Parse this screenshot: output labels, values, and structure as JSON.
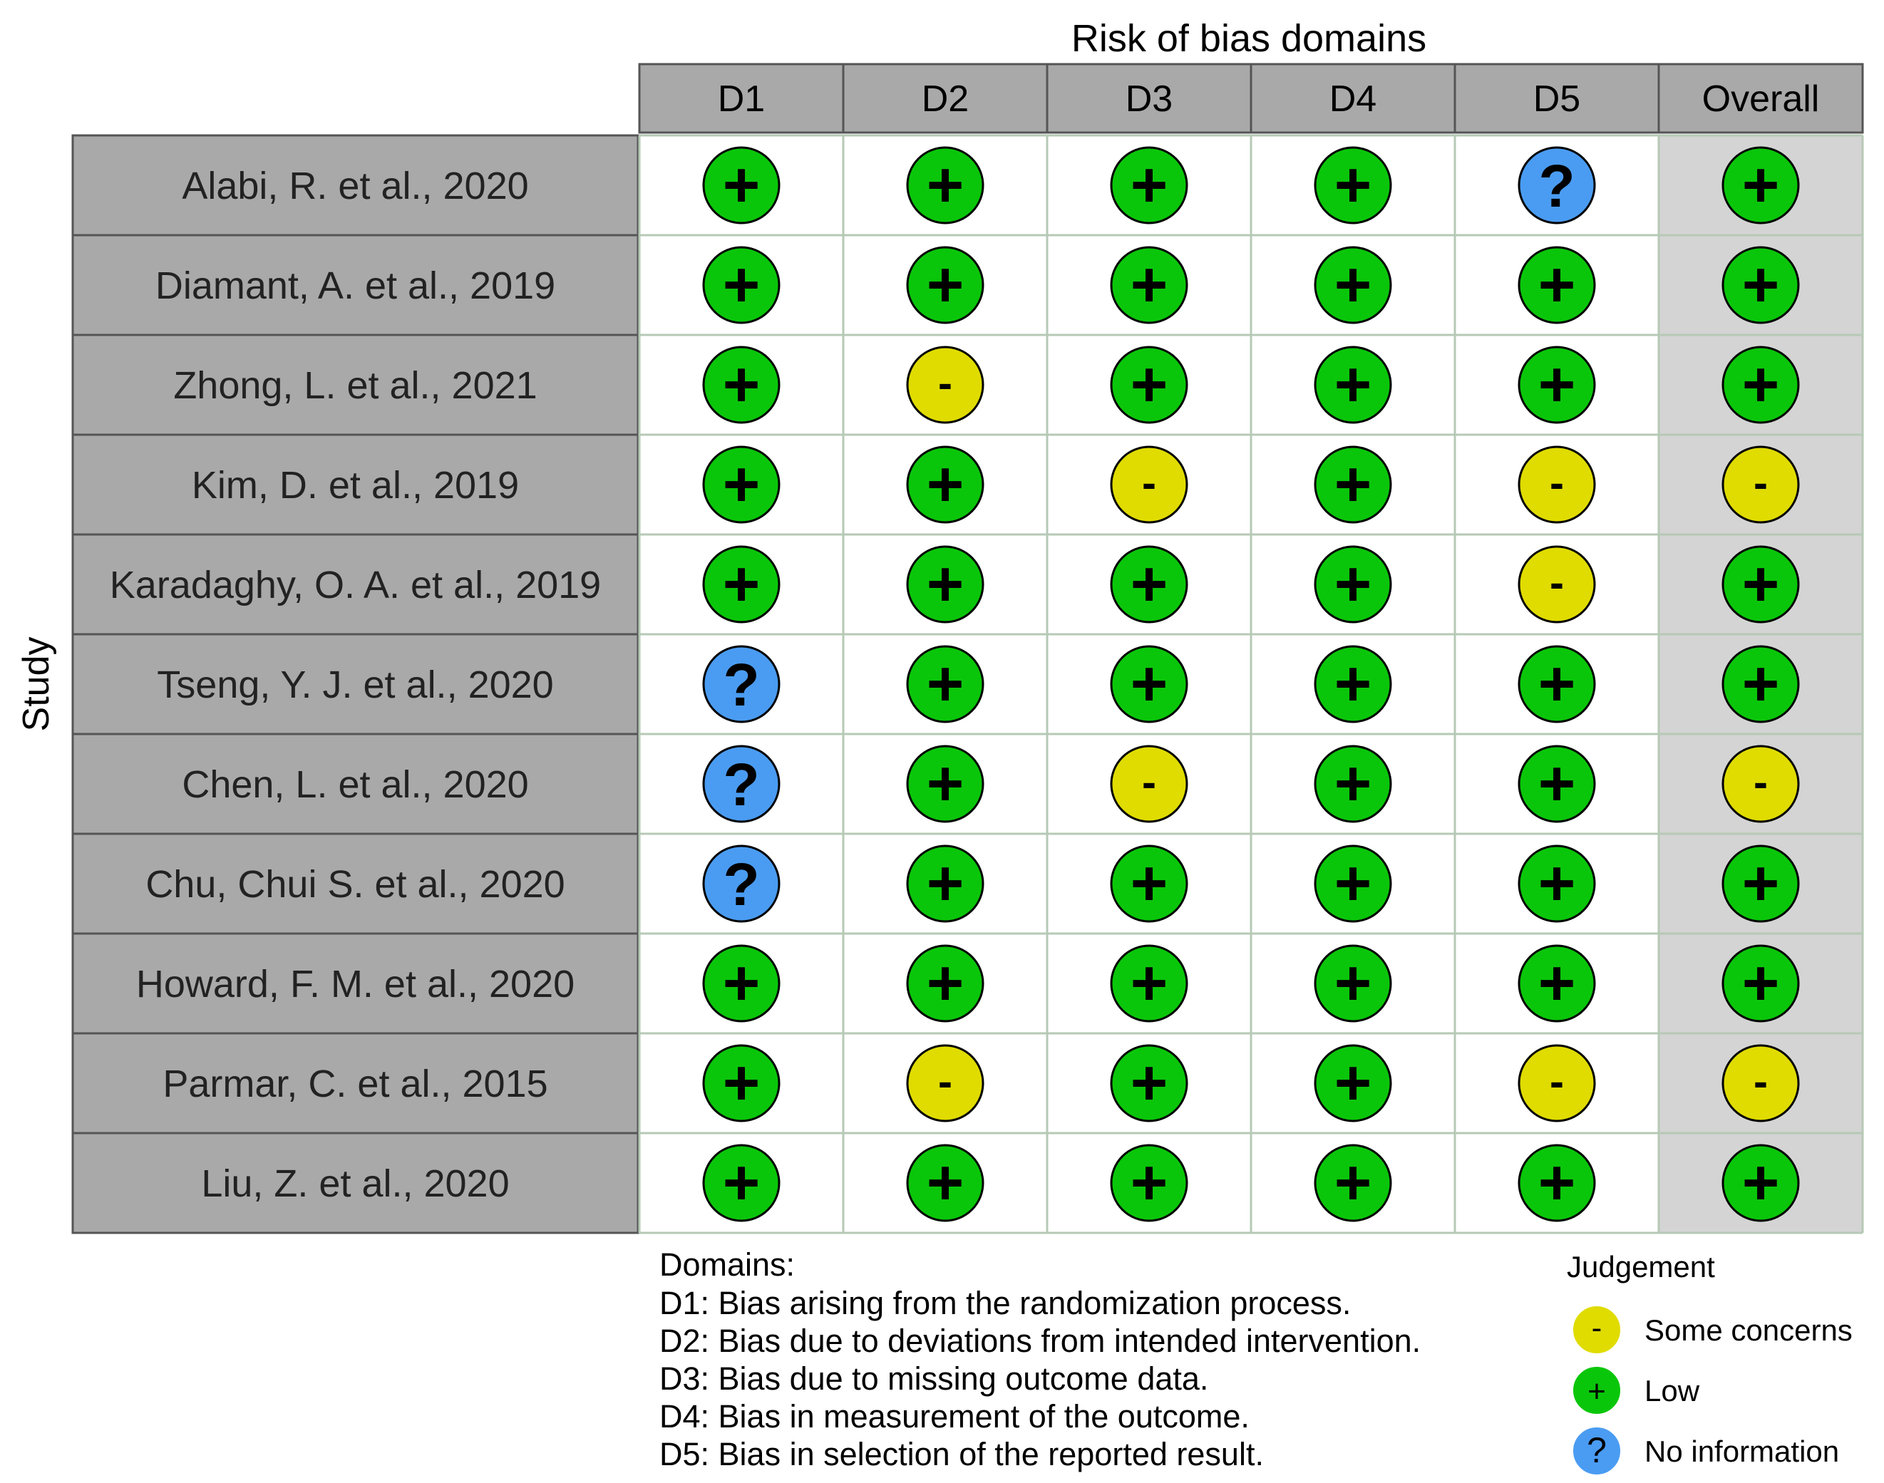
{
  "chart_data": {
    "type": "table",
    "title": "Risk of bias domains",
    "ylabel": "Study",
    "columns": [
      "D1",
      "D2",
      "D3",
      "D4",
      "D5",
      "Overall"
    ],
    "studies": [
      "Alabi, R. et al., 2020",
      "Diamant, A. et al., 2019",
      "Zhong, L. et al., 2021",
      "Kim, D. et al., 2019",
      "Karadaghy, O. A. et al., 2019",
      "Tseng, Y. J. et al., 2020",
      "Chen, L. et al., 2020",
      "Chu, Chui S. et al., 2020",
      "Howard, F. M. et al., 2020",
      "Parmar, C. et al., 2015",
      "Liu, Z. et al., 2020"
    ],
    "judgements": [
      [
        "Low",
        "Low",
        "Low",
        "Low",
        "No information",
        "Low"
      ],
      [
        "Low",
        "Low",
        "Low",
        "Low",
        "Low",
        "Low"
      ],
      [
        "Low",
        "Some concerns",
        "Low",
        "Low",
        "Low",
        "Low"
      ],
      [
        "Low",
        "Low",
        "Some concerns",
        "Low",
        "Some concerns",
        "Some concerns"
      ],
      [
        "Low",
        "Low",
        "Low",
        "Low",
        "Some concerns",
        "Low"
      ],
      [
        "No information",
        "Low",
        "Low",
        "Low",
        "Low",
        "Low"
      ],
      [
        "No information",
        "Low",
        "Some concerns",
        "Low",
        "Low",
        "Some concerns"
      ],
      [
        "No information",
        "Low",
        "Low",
        "Low",
        "Low",
        "Low"
      ],
      [
        "Low",
        "Low",
        "Low",
        "Low",
        "Low",
        "Low"
      ],
      [
        "Low",
        "Some concerns",
        "Low",
        "Low",
        "Some concerns",
        "Some concerns"
      ],
      [
        "Low",
        "Low",
        "Low",
        "Low",
        "Low",
        "Low"
      ]
    ],
    "domains_title": "Domains:",
    "domains": [
      "D1: Bias arising from the randomization process.",
      "D2: Bias due to deviations from intended intervention.",
      "D3: Bias due to missing outcome data.",
      "D4: Bias in measurement of the outcome.",
      "D5: Bias in selection of the reported result."
    ],
    "legend": {
      "title": "Judgement",
      "items": [
        {
          "label": "Some concerns",
          "symbol": "-",
          "color": "#e0dc00"
        },
        {
          "label": "Low",
          "symbol": "+",
          "color": "#0ac60a"
        },
        {
          "label": "No information",
          "symbol": "?",
          "color": "#4a9cf2"
        }
      ]
    },
    "colors": {
      "study_cell": "#a9a9a9",
      "header_cell": "#a9a9a9",
      "overall_column": "#d4d4d4",
      "grid_line": "#b6c9b6"
    }
  }
}
